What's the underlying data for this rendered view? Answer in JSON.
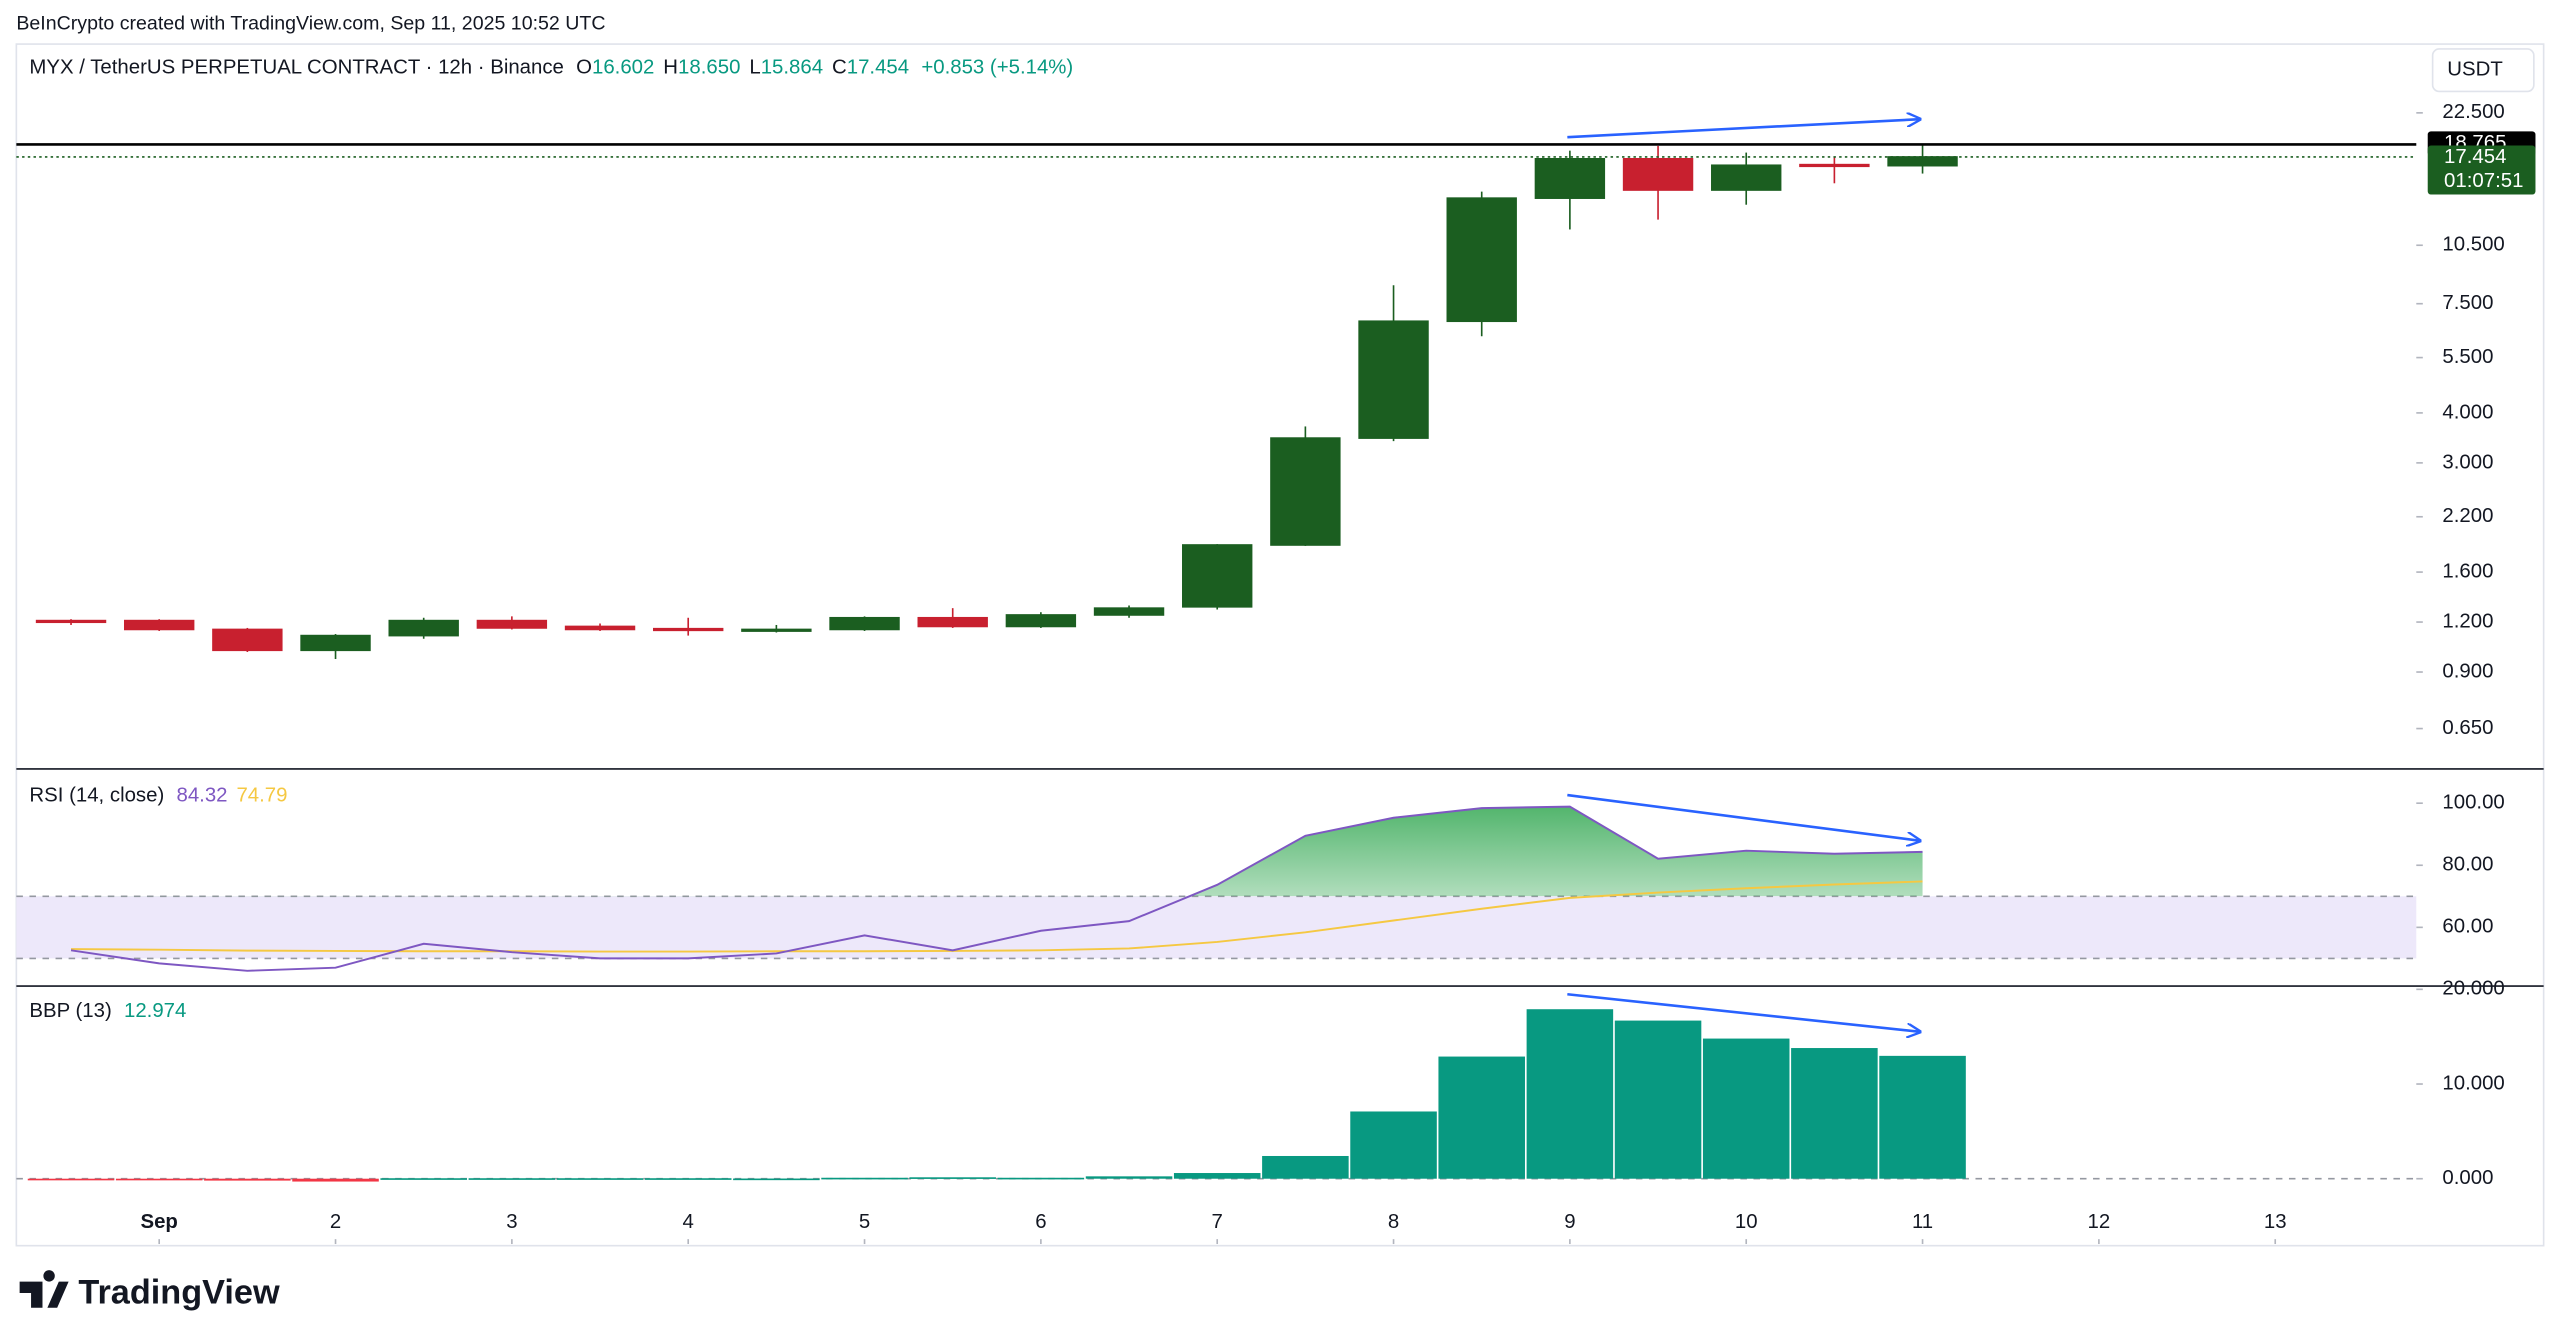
{
  "caption": "BeInCrypto created with TradingView.com, Sep 11, 2025 10:52 UTC",
  "brand": "TradingView",
  "chart_data": [
    {
      "type": "candlestick",
      "title": "MYX / TetherUS PERPETUAL CONTRACT · 12h · Binance",
      "currency": "USDT",
      "ohlc_legend": [
        {
          "label": "O",
          "value": "16.602"
        },
        {
          "label": "H",
          "value": "18.650"
        },
        {
          "label": "L",
          "value": "15.864"
        },
        {
          "label": "C",
          "value": "17.454"
        }
      ],
      "change": "+0.853 (+5.14%)",
      "x": [
        0.5,
        1,
        1.5,
        2,
        2.5,
        3,
        3.5,
        4,
        4.5,
        5,
        5.5,
        6,
        6.5,
        7,
        7.5,
        8,
        8.5,
        9,
        9.5,
        10,
        10.5,
        11
      ],
      "open": [
        1.21,
        1.21,
        1.15,
        1.02,
        1.11,
        1.21,
        1.17,
        1.155,
        1.145,
        1.15,
        1.23,
        1.17,
        1.25,
        1.31,
        1.87,
        3.46,
        6.78,
        13.77,
        17.27,
        14.43,
        16.7,
        16.602
      ],
      "high": [
        1.22,
        1.22,
        1.16,
        1.12,
        1.23,
        1.24,
        1.19,
        1.23,
        1.18,
        1.24,
        1.3,
        1.27,
        1.32,
        1.88,
        3.7,
        8.34,
        14.3,
        18.1,
        18.6,
        17.9,
        17.4,
        18.65
      ],
      "low": [
        1.18,
        1.14,
        1.01,
        0.97,
        1.09,
        1.15,
        1.14,
        1.11,
        1.13,
        1.14,
        1.16,
        1.16,
        1.23,
        1.29,
        1.86,
        3.4,
        6.22,
        11.5,
        12.17,
        13.26,
        15.0,
        15.864
      ],
      "close": [
        1.2,
        1.15,
        1.02,
        1.11,
        1.21,
        1.16,
        1.15,
        1.145,
        1.15,
        1.23,
        1.17,
        1.25,
        1.3,
        1.87,
        3.46,
        6.78,
        13.77,
        17.27,
        14.43,
        16.64,
        16.6,
        17.454
      ],
      "up_color": "#1b5e20",
      "down_color": "#c8202f",
      "log_scale": true,
      "grid": false,
      "xlim": [
        0.19,
        13.8
      ],
      "ylim": [
        0.52,
        32.5
      ],
      "yticks": [
        {
          "value": 0.65,
          "label": "0.650"
        },
        {
          "value": 0.9,
          "label": "0.900"
        },
        {
          "value": 1.2,
          "label": "1.200"
        },
        {
          "value": 1.6,
          "label": "1.600"
        },
        {
          "value": 2.2,
          "label": "2.200"
        },
        {
          "value": 3,
          "label": "3.000"
        },
        {
          "value": 4,
          "label": "4.000"
        },
        {
          "value": 5.5,
          "label": "5.500"
        },
        {
          "value": 7.5,
          "label": "7.500"
        },
        {
          "value": 10.5,
          "label": "10.500"
        },
        {
          "value": 22.5,
          "label": "22.500"
        }
      ],
      "price_lines": [
        {
          "value": 18.765,
          "color": "#000000",
          "style": "solid"
        },
        {
          "value": 17.454,
          "color": "#1b5e20",
          "style": "dotted",
          "countdown": "01:07:51"
        }
      ]
    },
    {
      "type": "line",
      "title": "RSI (14, close)",
      "x": [
        0.5,
        1,
        1.5,
        2,
        2.5,
        3,
        3.5,
        4,
        4.5,
        5,
        5.5,
        6,
        6.5,
        7,
        7.5,
        8,
        8.5,
        9,
        9.5,
        10,
        10.5,
        11
      ],
      "series": [
        {
          "color": "#7e57c2",
          "values": [
            52.6,
            48.4,
            46,
            47,
            54.7,
            52,
            50,
            50,
            51.6,
            57.4,
            52.6,
            58.9,
            62,
            73.7,
            89.5,
            95.3,
            98.4,
            98.9,
            82.1,
            84.7,
            83.7,
            84.32
          ]
        },
        {
          "color": "#f5c842",
          "values": [
            53,
            52.8,
            52.5,
            52.4,
            52.3,
            52.3,
            52.2,
            52.2,
            52.3,
            52.3,
            52.4,
            52.6,
            53.2,
            55.3,
            58.4,
            62.2,
            66,
            69.5,
            71.2,
            72.6,
            73.8,
            74.79
          ]
        }
      ],
      "band": [
        50,
        70
      ],
      "band_color": "#ede8fa",
      "fill_above": 70,
      "fill_color": "#34a853",
      "xlim": [
        0.19,
        13.8
      ],
      "ylim": [
        41.6,
        110.5
      ],
      "yticks": [
        {
          "value": 60,
          "label": "60.00"
        },
        {
          "value": 80,
          "label": "80.00"
        },
        {
          "value": 100,
          "label": "100.00"
        }
      ],
      "grid": false
    },
    {
      "type": "bar",
      "title": "BBP (13)",
      "x": [
        0.5,
        1,
        1.5,
        2,
        2.5,
        3,
        3.5,
        4,
        4.5,
        5,
        5.5,
        6,
        6.5,
        7,
        7.5,
        8,
        8.5,
        9,
        9.5,
        10,
        10.5,
        11
      ],
      "values": [
        -0.1,
        -0.05,
        -0.2,
        -0.3,
        0.05,
        0.05,
        0.05,
        0.05,
        0.02,
        0.1,
        0.15,
        0.1,
        0.25,
        0.6,
        2.4,
        7.1,
        12.9,
        17.9,
        16.7,
        14.8,
        13.8,
        12.974
      ],
      "color": "#089981",
      "negative_color": "#f23645",
      "xlim": [
        0.19,
        13.8
      ],
      "ylim": [
        -6.9,
        20.17
      ],
      "yticks": [
        {
          "value": 0,
          "label": "0.000"
        },
        {
          "value": 10,
          "label": "10.000"
        },
        {
          "value": 20,
          "label": "20.000"
        }
      ],
      "xticks": [
        {
          "value": 1,
          "label": "Sep"
        },
        2,
        3,
        4,
        5,
        6,
        7,
        8,
        9,
        10,
        11,
        12,
        13
      ],
      "grid": false
    }
  ]
}
